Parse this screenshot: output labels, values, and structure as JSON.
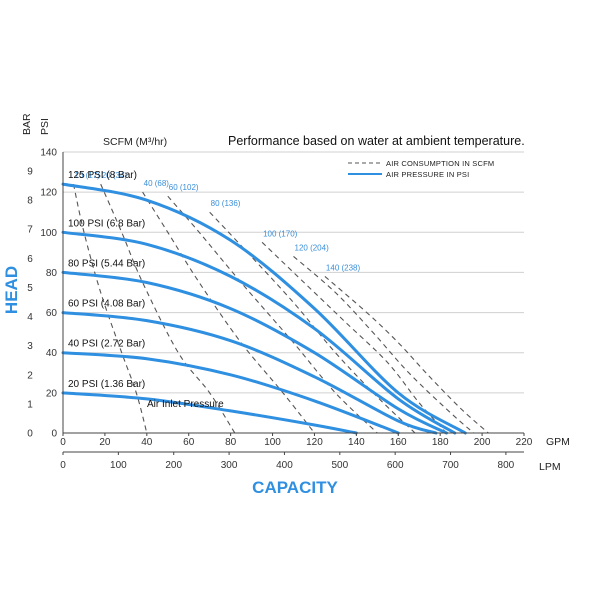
{
  "chart_data": {
    "type": "line",
    "title": "Performance based on water at ambient temperature.",
    "air_unit_label": "SCFM (M³/hr)",
    "xlabel": "CAPACITY",
    "ylabel": "HEAD",
    "x_unit_gpm": "GPM",
    "x_unit_lpm": "LPM",
    "y_unit_psi": "PSI",
    "y_unit_bar": "BAR",
    "xlim_gpm": [
      0,
      220
    ],
    "ylim_psi": [
      0,
      140
    ],
    "x_ticks_gpm": [
      "0",
      "20",
      "40",
      "60",
      "80",
      "100",
      "120",
      "140",
      "160",
      "180",
      "200",
      "220"
    ],
    "x_ticks_lpm": [
      "0",
      "100",
      "200",
      "300",
      "400",
      "500",
      "600",
      "700",
      "800"
    ],
    "x_ticks_lpm_values": [
      0,
      100,
      200,
      300,
      400,
      500,
      600,
      700,
      800
    ],
    "y_ticks_psi": [
      "0",
      "20",
      "40",
      "60",
      "80",
      "100",
      "120",
      "140"
    ],
    "y_ticks_bar": [
      "0",
      "1",
      "2",
      "3",
      "4",
      "5",
      "6",
      "7",
      "8",
      "9"
    ],
    "legend": {
      "air": "AIR CONSUMPTION IN SCFM",
      "pressure": "AIR PRESSURE IN PSI"
    },
    "series": [
      {
        "name": "125 PSI (8 Bar)",
        "type": "pressure",
        "x": [
          0,
          40,
          80,
          120,
          160,
          192
        ],
        "y": [
          124,
          116,
          96,
          62,
          20,
          0
        ]
      },
      {
        "name": "100 PSI (6.8 Bar)",
        "type": "pressure",
        "x": [
          0,
          40,
          80,
          120,
          160,
          187
        ],
        "y": [
          100,
          94,
          78,
          52,
          17,
          0
        ]
      },
      {
        "name": "80 PSI (5.44 Bar)",
        "type": "pressure",
        "x": [
          0,
          40,
          80,
          120,
          160,
          183
        ],
        "y": [
          80,
          75,
          62,
          40,
          12,
          0
        ]
      },
      {
        "name": "60 PSI (4.08 Bar)",
        "type": "pressure",
        "x": [
          0,
          40,
          80,
          120,
          160,
          178
        ],
        "y": [
          60,
          56,
          46,
          28,
          6,
          0
        ]
      },
      {
        "name": "40 PSI (2.72 Bar)",
        "type": "pressure",
        "x": [
          0,
          40,
          80,
          120,
          160
        ],
        "y": [
          40,
          37,
          29,
          16,
          0
        ]
      },
      {
        "name": "20 PSI (1.36 Bar)",
        "type": "pressure",
        "x": [
          0,
          40,
          80,
          120,
          140
        ],
        "y": [
          20,
          17,
          11,
          4,
          0
        ]
      }
    ],
    "air_curves": [
      {
        "name": "10 (17)",
        "x": [
          5,
          10,
          18,
          28,
          35,
          40
        ],
        "y": [
          124,
          100,
          70,
          40,
          20,
          0
        ]
      },
      {
        "name": "20 (34)",
        "x": [
          18,
          28,
          38,
          55,
          70,
          82
        ],
        "y": [
          124,
          100,
          75,
          40,
          20,
          0
        ]
      },
      {
        "name": "40 (68)",
        "x": [
          38,
          50,
          65,
          85,
          105,
          120
        ],
        "y": [
          120,
          100,
          75,
          45,
          20,
          0
        ]
      },
      {
        "name": "60 (102)",
        "x": [
          50,
          65,
          85,
          110,
          130,
          150
        ],
        "y": [
          118,
          100,
          75,
          45,
          20,
          0
        ]
      },
      {
        "name": "80 (136)",
        "x": [
          70,
          88,
          110,
          130,
          150,
          168
        ],
        "y": [
          110,
          90,
          65,
          40,
          18,
          0
        ]
      },
      {
        "name": "100 (170)",
        "x": [
          95,
          115,
          135,
          155,
          170,
          183
        ],
        "y": [
          95,
          75,
          55,
          35,
          15,
          0
        ]
      },
      {
        "name": "120 (204)",
        "x": [
          110,
          130,
          148,
          165,
          185,
          196
        ],
        "y": [
          88,
          70,
          50,
          30,
          10,
          0
        ]
      },
      {
        "name": "140 (238)",
        "x": [
          125,
          145,
          160,
          175,
          190,
          203
        ],
        "y": [
          78,
          60,
          45,
          28,
          12,
          0
        ]
      }
    ],
    "annotations": [
      "Air Inlet Pressure"
    ],
    "grid": true,
    "legend_position": "top-right"
  },
  "colors": {
    "pressure": "#2f8fe0",
    "air": "#555555",
    "grid": "#d0d0d0",
    "accent": "#2f8fe0"
  }
}
